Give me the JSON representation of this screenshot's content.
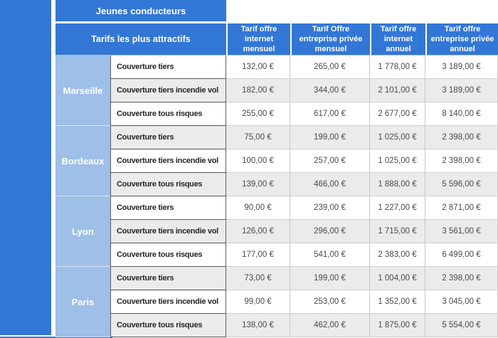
{
  "chart_data": {
    "type": "table",
    "title": "Jeunes conducteurs",
    "corner": "Tarifs les plus attractifs",
    "columns": [
      "Tarif offre internet mensuel",
      "Tarif Offre entreprise privée mensuel",
      "Tarif offre internet annuel",
      "Tarif offre entreprise privée annuel"
    ],
    "row_groups": [
      {
        "city": "Marseille",
        "rows": [
          {
            "label": "Couverture tiers",
            "values": [
              "132,00 €",
              "265,00 €",
              "1 778,00 €",
              "3 189,00 €"
            ]
          },
          {
            "label": "Couverture tiers incendie vol",
            "values": [
              "182,00 €",
              "344,00 €",
              "2 101,00 €",
              "3 189,00 €"
            ]
          },
          {
            "label": "Couverture tous risques",
            "values": [
              "255,00 €",
              "617,00 €",
              "2 677,00 €",
              "8 140,00 €"
            ]
          }
        ]
      },
      {
        "city": "Bordeaux",
        "rows": [
          {
            "label": "Couverture tiers",
            "values": [
              "75,00 €",
              "199,00 €",
              "1 025,00 €",
              "2 398,00 €"
            ]
          },
          {
            "label": "Couverture tiers incendie vol",
            "values": [
              "100,00 €",
              "257,00 €",
              "1 025,00 €",
              "2 398,00 €"
            ]
          },
          {
            "label": "Couverture tous risques",
            "values": [
              "139,00 €",
              "466,00 €",
              "1 888,00 €",
              "5 596,00 €"
            ]
          }
        ]
      },
      {
        "city": "Lyon",
        "rows": [
          {
            "label": "Couverture tiers",
            "values": [
              "90,00 €",
              "239,00 €",
              "1 227,00 €",
              "2 871,00 €"
            ]
          },
          {
            "label": "Couverture tiers incendie vol",
            "values": [
              "126,00 €",
              "296,00 €",
              "1 715,00 €",
              "3 561,00 €"
            ]
          },
          {
            "label": "Couverture tous risques",
            "values": [
              "177,00 €",
              "541,00 €",
              "2 383,00 €",
              "6 499,00 €"
            ]
          }
        ]
      },
      {
        "city": "Paris",
        "rows": [
          {
            "label": "Couverture tiers",
            "values": [
              "73,00 €",
              "199,00 €",
              "1 004,00 €",
              "2 398,00 €"
            ]
          },
          {
            "label": "Couverture tiers incendie vol",
            "values": [
              "99,00 €",
              "253,00 €",
              "1 352,00 €",
              "3 045,00 €"
            ]
          },
          {
            "label": "Couverture tous risques",
            "values": [
              "138,00 €",
              "462,00 €",
              "1 875,00 €",
              "5 554,00 €"
            ]
          }
        ]
      }
    ],
    "colors": {
      "header_blue": "#3377d6",
      "city_blue": "#9dbfe8",
      "stripe_gray": "#ebebeb"
    },
    "layout": {
      "legend": "none",
      "grid": "on"
    }
  }
}
